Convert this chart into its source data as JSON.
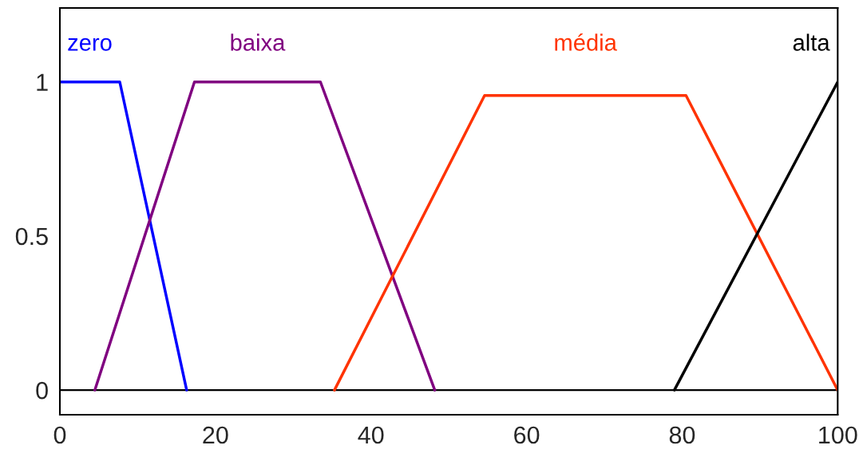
{
  "chart_data": {
    "type": "line",
    "series": [
      {
        "name": "zero",
        "color": "#0000ff",
        "x": [
          0,
          7.7,
          16.3
        ],
        "values": [
          1,
          1,
          0
        ]
      },
      {
        "name": "baixa",
        "color": "#800080",
        "x": [
          4.5,
          17.3,
          33.5,
          48.2
        ],
        "values": [
          0,
          1,
          1,
          0
        ]
      },
      {
        "name": "média",
        "color": "#ff3300",
        "x": [
          35.3,
          54.6,
          80.5,
          100
        ],
        "values": [
          0,
          0.956,
          0.956,
          0
        ]
      },
      {
        "name": "alta",
        "color": "#000000",
        "x": [
          79,
          100
        ],
        "values": [
          0,
          1
        ]
      }
    ],
    "xlim": [
      0,
      100
    ],
    "ylim": [
      -0.08,
      1.24
    ],
    "xticks": [
      0,
      20,
      40,
      60,
      80,
      100
    ],
    "yticks": [
      0,
      0.5,
      1
    ],
    "ref_lines": [
      {
        "axis": "y",
        "value": 0,
        "color": "#000000"
      }
    ],
    "grid": false,
    "legend": false,
    "marker": "none",
    "line_style": "solid"
  }
}
